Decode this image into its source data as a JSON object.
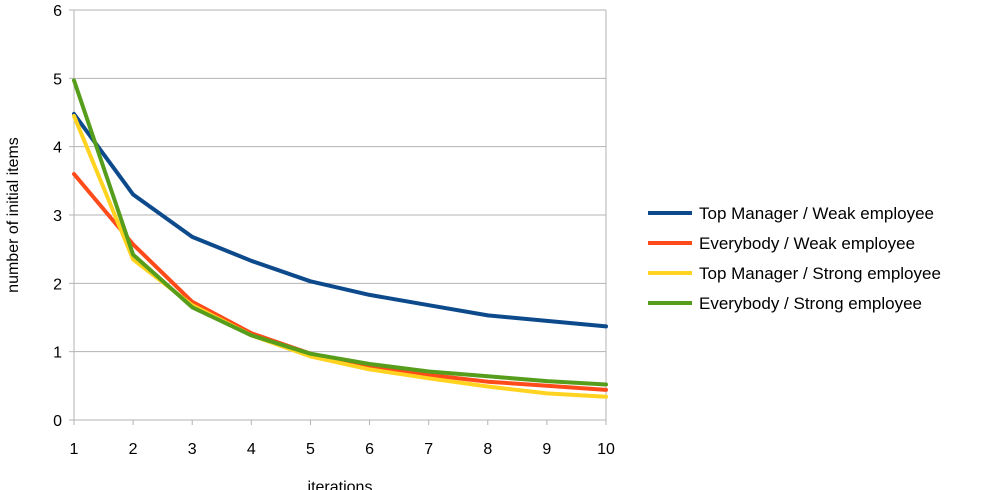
{
  "chart_data": {
    "type": "line",
    "title": "",
    "xlabel": "iterations",
    "ylabel": "number of initial items",
    "x": [
      1,
      2,
      3,
      4,
      5,
      6,
      7,
      8,
      9,
      10
    ],
    "xlim": [
      1,
      10
    ],
    "ylim": [
      0,
      6
    ],
    "yticks": [
      0,
      1,
      2,
      3,
      4,
      5,
      6
    ],
    "grid": "horizontal",
    "legend_position": "right",
    "series": [
      {
        "name": "Top Manager / Weak employee",
        "color": "#0d4a8c",
        "values": [
          4.48,
          3.3,
          2.68,
          2.33,
          2.03,
          1.83,
          1.68,
          1.53,
          1.45,
          1.37
        ]
      },
      {
        "name": "Everybody / Weak employee",
        "color": "#ff4a1a",
        "values": [
          3.6,
          2.57,
          1.73,
          1.27,
          0.97,
          0.78,
          0.66,
          0.56,
          0.5,
          0.44
        ]
      },
      {
        "name": "Top Manager / Strong employee",
        "color": "#ffd320",
        "values": [
          4.45,
          2.35,
          1.68,
          1.24,
          0.93,
          0.74,
          0.61,
          0.49,
          0.39,
          0.34
        ]
      },
      {
        "name": "Everybody / Strong employee",
        "color": "#579d1c",
        "values": [
          4.97,
          2.42,
          1.65,
          1.24,
          0.97,
          0.82,
          0.71,
          0.64,
          0.57,
          0.52
        ]
      }
    ]
  }
}
